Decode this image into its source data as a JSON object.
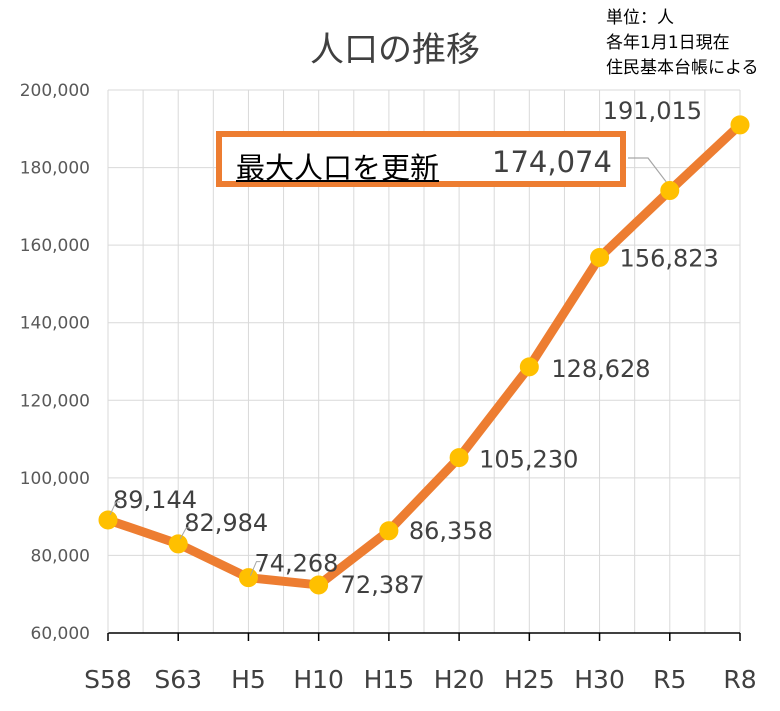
{
  "title": "人口の推移",
  "unit_note": [
    "単位：人",
    "各年1月1日現在",
    "住民基本台帳による"
  ],
  "callout": {
    "label": "最大人口を更新",
    "value": "174,074"
  },
  "colors": {
    "line": "#ed7d31",
    "marker": "#ffc000",
    "grid": "#d9d9d9",
    "axis": "#000000",
    "callout_border": "#ed7d31"
  },
  "chart_data": {
    "type": "line",
    "categories": [
      "S58",
      "S63",
      "H5",
      "H10",
      "H15",
      "H20",
      "H25",
      "H30",
      "R5",
      "R8"
    ],
    "values": [
      89144,
      82984,
      74268,
      72387,
      86358,
      105230,
      128628,
      156823,
      174074,
      191015
    ],
    "data_labels": [
      "89,144",
      "82,984",
      "74,268",
      "72,387",
      "86,358",
      "105,230",
      "128,628",
      "156,823",
      "",
      "191,015"
    ],
    "ylim": [
      60000,
      200000
    ],
    "yticks": [
      "60,000",
      "80,000",
      "100,000",
      "120,000",
      "140,000",
      "160,000",
      "180,000",
      "200,000"
    ],
    "grid": true,
    "legend": "none"
  }
}
